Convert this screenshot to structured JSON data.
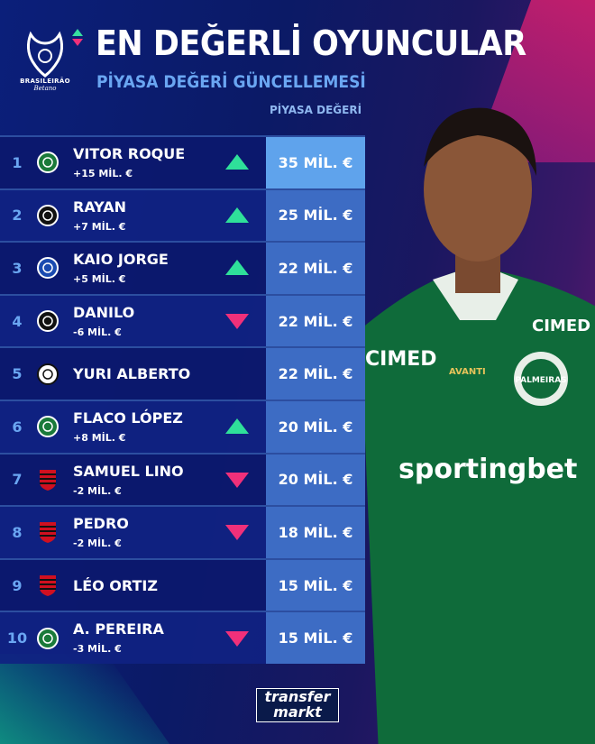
{
  "header": {
    "title": "EN DEĞERLİ OYUNCULAR",
    "subtitle": "PİYASA DEĞERİ GÜNCELLEMESİ",
    "column_header": "PİYASA DEĞERİ"
  },
  "logo": {
    "line1": "BRASILEIRÃO",
    "line2": "Betano"
  },
  "colors": {
    "up": "#2fe09a",
    "down": "#f0307a",
    "value_box": "#3d6cc4",
    "value_box_first": "#5fa3ec",
    "rank": "#6aa6f2"
  },
  "players": [
    {
      "rank": "1",
      "name": "VITOR ROQUE",
      "change": "+15 MİL. €",
      "trend": "up",
      "club": "palmeiras",
      "value": "35 MİL. €"
    },
    {
      "rank": "2",
      "name": "RAYAN",
      "change": "+7 MİL. €",
      "trend": "up",
      "club": "vasco",
      "value": "25 MİL. €"
    },
    {
      "rank": "3",
      "name": "KAIO JORGE",
      "change": "+5 MİL. €",
      "trend": "up",
      "club": "cruzeiro",
      "value": "22 MİL. €"
    },
    {
      "rank": "4",
      "name": "DANILO",
      "change": "-6 MİL. €",
      "trend": "down",
      "club": "botafogo",
      "value": "22 MİL. €"
    },
    {
      "rank": "5",
      "name": "YURI ALBERTO",
      "change": "",
      "trend": "none",
      "club": "corinthians",
      "value": "22 MİL. €"
    },
    {
      "rank": "6",
      "name": "FLACO LÓPEZ",
      "change": "+8 MİL. €",
      "trend": "up",
      "club": "palmeiras",
      "value": "20 MİL. €"
    },
    {
      "rank": "7",
      "name": "SAMUEL LINO",
      "change": "-2 MİL. €",
      "trend": "down",
      "club": "flamengo",
      "value": "20 MİL. €"
    },
    {
      "rank": "8",
      "name": "PEDRO",
      "change": "-2 MİL. €",
      "trend": "down",
      "club": "flamengo",
      "value": "18 MİL. €"
    },
    {
      "rank": "9",
      "name": "LÉO ORTIZ",
      "change": "",
      "trend": "none",
      "club": "flamengo",
      "value": "15 MİL. €"
    },
    {
      "rank": "10",
      "name": "A. PEREIRA",
      "change": "-3 MİL. €",
      "trend": "down",
      "club": "palmeiras",
      "value": "15 MİL. €"
    }
  ],
  "photo": {
    "shirt_sponsor": "sportingbet",
    "shirt_text": "CIMED",
    "kit_brand": "AVANTI",
    "badge": "PALMEIRAS"
  },
  "footer": {
    "brand_line1": "transfer",
    "brand_line2": "markt"
  }
}
